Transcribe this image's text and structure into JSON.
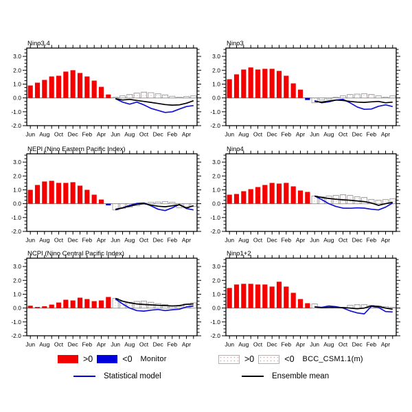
{
  "figure": {
    "background": "#ffffff"
  },
  "axis": {
    "month_labels": [
      "Jun",
      "Aug",
      "Oct",
      "Dec",
      "Feb",
      "Apr",
      "Jun",
      "Aug",
      "Oct",
      "Dec",
      "Feb",
      "Apr"
    ],
    "ytick_values": [
      3,
      2,
      1,
      0,
      -1,
      -2
    ],
    "ytick_labels": [
      "3.0",
      "2.0",
      "1.0",
      "0.0",
      "-1.0",
      "-2.0"
    ],
    "ylim": [
      -2.0,
      3.6
    ],
    "n_slots": 24,
    "minor_ytick_step": 0.25
  },
  "colors": {
    "positive_bar": "#f40000",
    "negative_bar": "#0000dd",
    "forecast_bar_border": "#9a9a9a",
    "forecast_bar_dot": "#d8aaaa",
    "statistical_model_line": "#1111d6",
    "ensemble_mean_line": "#000000",
    "frame": "#000000",
    "zero_line": "#777777"
  },
  "chart_data": [
    {
      "type": "bar+line",
      "title": "Nino3.4",
      "observed": [
        0.9,
        1.1,
        1.3,
        1.55,
        1.6,
        1.9,
        2.0,
        1.8,
        1.55,
        1.25,
        0.8,
        0.25
      ],
      "forecast_bars": [
        0.05,
        0.15,
        0.25,
        0.35,
        0.42,
        0.38,
        0.3,
        0.22,
        0.12,
        0.05,
        0.1,
        0.15
      ],
      "statistical_model": [
        -0.05,
        -0.3,
        -0.45,
        -0.3,
        -0.5,
        -0.75,
        -0.9,
        -1.05,
        -1.0,
        -0.8,
        -0.62,
        -0.55
      ],
      "ensemble_mean": [
        -0.05,
        -0.15,
        -0.1,
        -0.18,
        -0.25,
        -0.32,
        -0.4,
        -0.48,
        -0.52,
        -0.5,
        -0.38,
        -0.2
      ]
    },
    {
      "type": "bar+line",
      "title": "Nino3",
      "observed": [
        1.35,
        1.7,
        2.05,
        2.2,
        2.05,
        2.1,
        2.1,
        1.95,
        1.6,
        1.05,
        0.6,
        -0.15
      ],
      "forecast_bars": [
        -0.35,
        -0.15,
        -0.08,
        0.05,
        0.15,
        0.25,
        0.28,
        0.3,
        0.25,
        0.15,
        0.05,
        0.15
      ],
      "statistical_model": [
        -0.2,
        -0.35,
        -0.28,
        -0.15,
        -0.1,
        -0.35,
        -0.65,
        -0.82,
        -0.8,
        -0.6,
        -0.5,
        -0.62
      ],
      "ensemble_mean": [
        -0.25,
        -0.3,
        -0.22,
        -0.15,
        -0.18,
        -0.25,
        -0.3,
        -0.32,
        -0.28,
        -0.25,
        -0.35,
        -0.3
      ]
    },
    {
      "type": "bar+line",
      "title": "NEPI (Nino Eastern Pacific Index)",
      "observed": [
        1.0,
        1.35,
        1.6,
        1.65,
        1.5,
        1.5,
        1.55,
        1.3,
        1.0,
        0.65,
        0.3,
        -0.12
      ],
      "forecast_bars": [
        -0.45,
        -0.35,
        -0.25,
        -0.15,
        0.05,
        0.1,
        0.12,
        0.15,
        0.1,
        -0.3,
        -0.3,
        -0.2
      ],
      "statistical_model": [
        -0.45,
        -0.3,
        -0.12,
        0.02,
        0.05,
        -0.15,
        -0.4,
        -0.5,
        -0.3,
        -0.05,
        -0.35,
        -0.45
      ],
      "ensemble_mean": [
        -0.4,
        -0.3,
        -0.18,
        -0.05,
        0.0,
        -0.1,
        -0.18,
        -0.22,
        -0.15,
        -0.08,
        -0.3,
        -0.15
      ]
    },
    {
      "type": "bar+line",
      "title": "Nino4",
      "observed": [
        0.65,
        0.7,
        0.9,
        1.05,
        1.2,
        1.35,
        1.5,
        1.45,
        1.5,
        1.25,
        0.95,
        0.85
      ],
      "forecast_bars": [
        0.55,
        0.5,
        0.55,
        0.6,
        0.65,
        0.6,
        0.5,
        0.45,
        0.3,
        0.25,
        0.3,
        0.35
      ],
      "statistical_model": [
        0.55,
        0.3,
        0.0,
        -0.2,
        -0.32,
        -0.33,
        -0.3,
        -0.32,
        -0.4,
        -0.45,
        -0.25,
        0.05
      ],
      "ensemble_mean": [
        0.55,
        0.45,
        0.38,
        0.32,
        0.28,
        0.25,
        0.2,
        0.15,
        0.05,
        -0.12,
        0.0,
        0.1
      ]
    },
    {
      "type": "bar+line",
      "title": "NCPI (Nino Central Pacific Index)",
      "observed": [
        0.17,
        0.08,
        0.13,
        0.25,
        0.4,
        0.6,
        0.55,
        0.75,
        0.65,
        0.5,
        0.55,
        0.8
      ],
      "forecast_bars": [
        0.7,
        0.48,
        0.42,
        0.48,
        0.5,
        0.42,
        0.32,
        0.25,
        0.17,
        0.13,
        0.3,
        0.38
      ],
      "statistical_model": [
        0.65,
        0.3,
        0.0,
        -0.18,
        -0.22,
        -0.15,
        -0.1,
        -0.18,
        -0.12,
        -0.08,
        0.08,
        0.15
      ],
      "ensemble_mean": [
        0.7,
        0.5,
        0.38,
        0.3,
        0.26,
        0.23,
        0.2,
        0.18,
        0.15,
        0.18,
        0.27,
        0.3
      ]
    },
    {
      "type": "bar+line",
      "title": "Nino1+2",
      "observed": [
        1.45,
        1.7,
        1.75,
        1.75,
        1.7,
        1.7,
        1.55,
        1.9,
        1.55,
        1.1,
        0.65,
        0.35
      ],
      "forecast_bars": [
        0.3,
        0.05,
        0.05,
        0.05,
        0.05,
        0.2,
        0.25,
        0.25,
        0.2,
        0.15,
        0.1,
        0.05
      ],
      "statistical_model": [
        0.08,
        0.05,
        0.15,
        0.1,
        0.0,
        -0.2,
        -0.35,
        -0.42,
        0.12,
        0.05,
        -0.25,
        -0.28
      ],
      "ensemble_mean": [
        0.08,
        0.03,
        0.05,
        0.05,
        0.03,
        0.0,
        -0.05,
        0.0,
        0.15,
        0.12,
        0.0,
        -0.08
      ]
    }
  ],
  "legend": {
    "monitor": {
      "pos": ">0",
      "neg": "<0",
      "label": "Monitor"
    },
    "model": {
      "pos": ">0",
      "neg": "<0",
      "label": "BCC_CSM1.1(m)"
    },
    "statistical": {
      "label": "Statistical model"
    },
    "ensemble": {
      "label": "Ensemble mean"
    }
  }
}
